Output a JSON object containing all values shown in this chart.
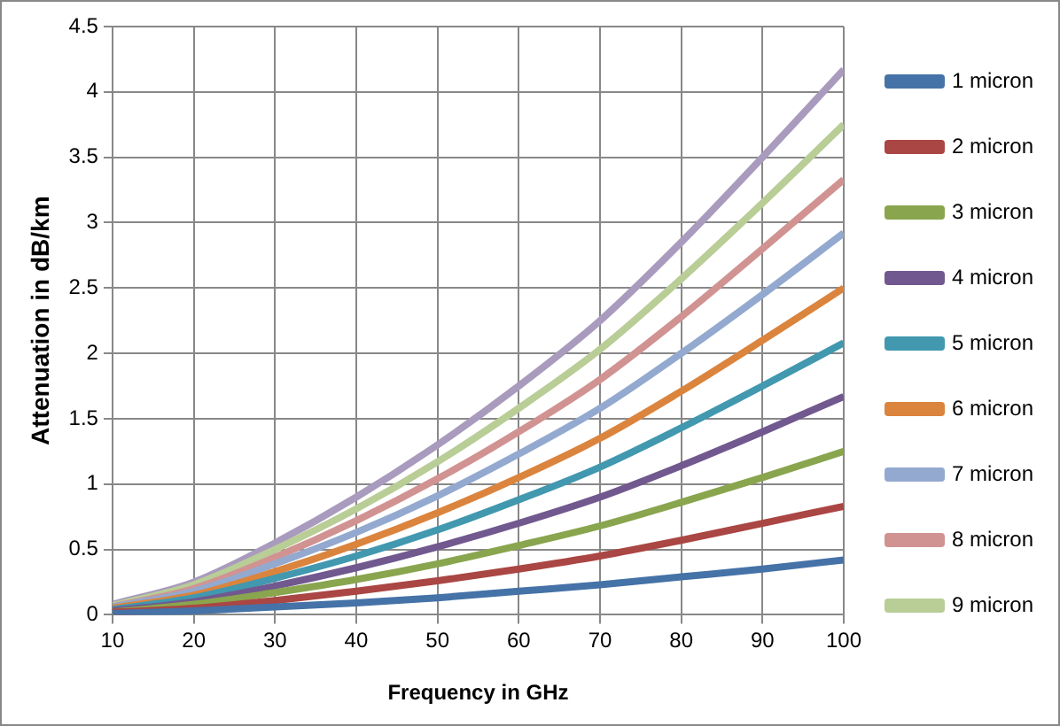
{
  "chart_data": {
    "type": "line",
    "xlabel": "Frequency in GHz",
    "ylabel": "Attenuation in dB/km",
    "x": [
      10,
      20,
      30,
      40,
      50,
      60,
      70,
      80,
      90,
      100
    ],
    "xlim": [
      10,
      100
    ],
    "xticks": [
      10,
      20,
      30,
      40,
      50,
      60,
      70,
      80,
      90,
      100
    ],
    "ylim": [
      0,
      4.5
    ],
    "yticks": [
      0,
      0.5,
      1,
      1.5,
      2,
      2.5,
      3,
      3.5,
      4,
      4.5
    ],
    "grid": true,
    "legend": "right",
    "marker": "none",
    "line_style": "solid",
    "series": [
      {
        "name": "1 micron",
        "color": "#4572a7",
        "values": [
          0.01,
          0.03,
          0.06,
          0.09,
          0.13,
          0.18,
          0.23,
          0.29,
          0.35,
          0.42
        ]
      },
      {
        "name": "2 micron",
        "color": "#aa4643",
        "values": [
          0.02,
          0.05,
          0.11,
          0.18,
          0.26,
          0.35,
          0.45,
          0.57,
          0.7,
          0.83
        ]
      },
      {
        "name": "3 micron",
        "color": "#89a54e",
        "values": [
          0.02,
          0.08,
          0.17,
          0.27,
          0.39,
          0.53,
          0.68,
          0.86,
          1.05,
          1.25
        ]
      },
      {
        "name": "4 micron",
        "color": "#71588f",
        "values": [
          0.03,
          0.1,
          0.22,
          0.36,
          0.52,
          0.7,
          0.9,
          1.14,
          1.4,
          1.67
        ]
      },
      {
        "name": "5 micron",
        "color": "#4198af",
        "values": [
          0.04,
          0.13,
          0.28,
          0.45,
          0.65,
          0.88,
          1.13,
          1.43,
          1.75,
          2.08
        ]
      },
      {
        "name": "6 micron",
        "color": "#db843d",
        "values": [
          0.05,
          0.15,
          0.33,
          0.54,
          0.78,
          1.05,
          1.35,
          1.71,
          2.1,
          2.5
        ]
      },
      {
        "name": "7 micron",
        "color": "#93a9cf",
        "values": [
          0.06,
          0.18,
          0.39,
          0.63,
          0.91,
          1.23,
          1.58,
          2.0,
          2.45,
          2.92
        ]
      },
      {
        "name": "8 micron",
        "color": "#d19392",
        "values": [
          0.06,
          0.2,
          0.44,
          0.72,
          1.04,
          1.4,
          1.8,
          2.28,
          2.8,
          3.33
        ]
      },
      {
        "name": "9 micron",
        "color": "#b9cd96",
        "values": [
          0.07,
          0.23,
          0.5,
          0.81,
          1.17,
          1.58,
          2.03,
          2.57,
          3.15,
          3.75
        ]
      },
      {
        "color": "#a99bbd",
        "values": [
          0.08,
          0.25,
          0.55,
          0.9,
          1.3,
          1.75,
          2.25,
          2.85,
          3.5,
          4.17
        ]
      }
    ]
  }
}
